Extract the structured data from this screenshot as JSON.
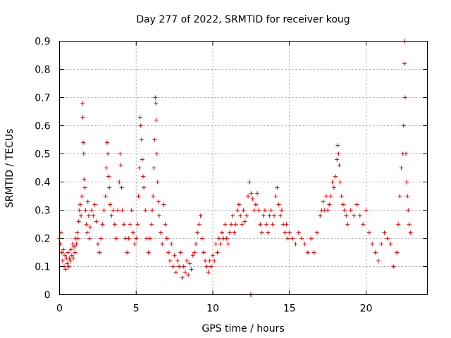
{
  "chart_data": {
    "type": "scatter",
    "title": "Day 277 of 2022, SRMTID for receiver koug",
    "xlabel": "GPS time / hours",
    "ylabel": "SRMTID / TECUs",
    "xlim": [
      0,
      24
    ],
    "ylim": [
      0,
      0.9
    ],
    "xticks": [
      0,
      5,
      10,
      15,
      20
    ],
    "xtick_labels": [
      "0",
      "5",
      "10",
      "15",
      "20"
    ],
    "yticks": [
      0,
      0.1,
      0.2,
      0.3,
      0.4,
      0.5,
      0.6,
      0.7,
      0.8,
      0.9
    ],
    "ytick_labels": [
      "0",
      "0.1",
      "0.2",
      "0.3",
      "0.4",
      "0.5",
      "0.6",
      "0.7",
      "0.8",
      "0.9"
    ],
    "grid": true,
    "marker": "+",
    "color": "#ff0000",
    "series": [
      {
        "name": "SRMTID",
        "points": [
          [
            0.0,
            0.2
          ],
          [
            0.05,
            0.18
          ],
          [
            0.1,
            0.22
          ],
          [
            0.15,
            0.15
          ],
          [
            0.2,
            0.12
          ],
          [
            0.25,
            0.16
          ],
          [
            0.3,
            0.1
          ],
          [
            0.35,
            0.14
          ],
          [
            0.4,
            0.09
          ],
          [
            0.45,
            0.13
          ],
          [
            0.5,
            0.11
          ],
          [
            0.55,
            0.15
          ],
          [
            0.6,
            0.1
          ],
          [
            0.65,
            0.13
          ],
          [
            0.7,
            0.12
          ],
          [
            0.75,
            0.16
          ],
          [
            0.8,
            0.14
          ],
          [
            0.85,
            0.18
          ],
          [
            0.9,
            0.13
          ],
          [
            0.95,
            0.17
          ],
          [
            1.0,
            0.15
          ],
          [
            1.05,
            0.2
          ],
          [
            1.1,
            0.18
          ],
          [
            1.15,
            0.22
          ],
          [
            1.2,
            0.2
          ],
          [
            1.25,
            0.26
          ],
          [
            1.3,
            0.3
          ],
          [
            1.35,
            0.32
          ],
          [
            1.4,
            0.28
          ],
          [
            1.45,
            0.35
          ],
          [
            1.5,
            0.68
          ],
          [
            1.52,
            0.63
          ],
          [
            1.55,
            0.54
          ],
          [
            1.58,
            0.5
          ],
          [
            1.6,
            0.41
          ],
          [
            1.65,
            0.38
          ],
          [
            1.7,
            0.3
          ],
          [
            1.75,
            0.25
          ],
          [
            1.8,
            0.22
          ],
          [
            1.85,
            0.33
          ],
          [
            1.9,
            0.28
          ],
          [
            1.95,
            0.2
          ],
          [
            2.0,
            0.24
          ],
          [
            2.1,
            0.3
          ],
          [
            2.2,
            0.28
          ],
          [
            2.3,
            0.32
          ],
          [
            2.4,
            0.26
          ],
          [
            2.5,
            0.18
          ],
          [
            2.6,
            0.15
          ],
          [
            2.7,
            0.2
          ],
          [
            2.8,
            0.25
          ],
          [
            2.9,
            0.3
          ],
          [
            3.0,
            0.35
          ],
          [
            3.05,
            0.45
          ],
          [
            3.1,
            0.54
          ],
          [
            3.15,
            0.5
          ],
          [
            3.2,
            0.42
          ],
          [
            3.25,
            0.38
          ],
          [
            3.3,
            0.32
          ],
          [
            3.4,
            0.28
          ],
          [
            3.5,
            0.3
          ],
          [
            3.6,
            0.25
          ],
          [
            3.7,
            0.2
          ],
          [
            3.8,
            0.3
          ],
          [
            3.9,
            0.4
          ],
          [
            3.95,
            0.5
          ],
          [
            4.0,
            0.46
          ],
          [
            4.05,
            0.38
          ],
          [
            4.1,
            0.3
          ],
          [
            4.2,
            0.25
          ],
          [
            4.3,
            0.2
          ],
          [
            4.4,
            0.15
          ],
          [
            4.5,
            0.2
          ],
          [
            4.6,
            0.25
          ],
          [
            4.7,
            0.3
          ],
          [
            4.8,
            0.22
          ],
          [
            4.9,
            0.18
          ],
          [
            5.0,
            0.2
          ],
          [
            5.1,
            0.25
          ],
          [
            5.15,
            0.35
          ],
          [
            5.2,
            0.45
          ],
          [
            5.25,
            0.63
          ],
          [
            5.3,
            0.6
          ],
          [
            5.35,
            0.55
          ],
          [
            5.4,
            0.48
          ],
          [
            5.45,
            0.42
          ],
          [
            5.5,
            0.38
          ],
          [
            5.6,
            0.3
          ],
          [
            5.7,
            0.2
          ],
          [
            5.8,
            0.15
          ],
          [
            5.9,
            0.2
          ],
          [
            6.0,
            0.25
          ],
          [
            6.05,
            0.3
          ],
          [
            6.1,
            0.35
          ],
          [
            6.15,
            0.45
          ],
          [
            6.2,
            0.55
          ],
          [
            6.25,
            0.7
          ],
          [
            6.28,
            0.68
          ],
          [
            6.3,
            0.62
          ],
          [
            6.35,
            0.5
          ],
          [
            6.4,
            0.4
          ],
          [
            6.45,
            0.33
          ],
          [
            6.5,
            0.28
          ],
          [
            6.6,
            0.22
          ],
          [
            6.7,
            0.18
          ],
          [
            6.8,
            0.32
          ],
          [
            6.9,
            0.25
          ],
          [
            7.0,
            0.2
          ],
          [
            7.1,
            0.15
          ],
          [
            7.2,
            0.12
          ],
          [
            7.3,
            0.18
          ],
          [
            7.4,
            0.1
          ],
          [
            7.5,
            0.14
          ],
          [
            7.6,
            0.08
          ],
          [
            7.7,
            0.12
          ],
          [
            7.8,
            0.1
          ],
          [
            7.9,
            0.15
          ],
          [
            8.0,
            0.06
          ],
          [
            8.1,
            0.1
          ],
          [
            8.2,
            0.08
          ],
          [
            8.3,
            0.12
          ],
          [
            8.4,
            0.07
          ],
          [
            8.5,
            0.11
          ],
          [
            8.6,
            0.09
          ],
          [
            8.7,
            0.14
          ],
          [
            8.8,
            0.15
          ],
          [
            8.9,
            0.18
          ],
          [
            9.0,
            0.22
          ],
          [
            9.1,
            0.25
          ],
          [
            9.2,
            0.28
          ],
          [
            9.3,
            0.2
          ],
          [
            9.4,
            0.15
          ],
          [
            9.5,
            0.12
          ],
          [
            9.6,
            0.1
          ],
          [
            9.7,
            0.08
          ],
          [
            9.8,
            0.12
          ],
          [
            9.9,
            0.1
          ],
          [
            10.0,
            0.14
          ],
          [
            10.1,
            0.12
          ],
          [
            10.2,
            0.18
          ],
          [
            10.3,
            0.15
          ],
          [
            10.4,
            0.2
          ],
          [
            10.5,
            0.18
          ],
          [
            10.6,
            0.22
          ],
          [
            10.7,
            0.2
          ],
          [
            10.8,
            0.25
          ],
          [
            10.9,
            0.2
          ],
          [
            11.0,
            0.18
          ],
          [
            11.1,
            0.22
          ],
          [
            11.2,
            0.25
          ],
          [
            11.3,
            0.28
          ],
          [
            11.4,
            0.22
          ],
          [
            11.5,
            0.25
          ],
          [
            11.6,
            0.3
          ],
          [
            11.7,
            0.32
          ],
          [
            11.8,
            0.28
          ],
          [
            11.9,
            0.25
          ],
          [
            12.0,
            0.3
          ],
          [
            12.1,
            0.26
          ],
          [
            12.2,
            0.28
          ],
          [
            12.3,
            0.35
          ],
          [
            12.4,
            0.4
          ],
          [
            12.45,
            0.0
          ],
          [
            12.5,
            0.36
          ],
          [
            12.55,
            0.0
          ],
          [
            12.6,
            0.34
          ],
          [
            12.7,
            0.3
          ],
          [
            12.8,
            0.32
          ],
          [
            12.9,
            0.36
          ],
          [
            13.0,
            0.3
          ],
          [
            13.1,
            0.25
          ],
          [
            13.2,
            0.22
          ],
          [
            13.3,
            0.28
          ],
          [
            13.4,
            0.3
          ],
          [
            13.5,
            0.25
          ],
          [
            13.6,
            0.22
          ],
          [
            13.7,
            0.28
          ],
          [
            13.8,
            0.3
          ],
          [
            13.9,
            0.25
          ],
          [
            14.0,
            0.28
          ],
          [
            14.1,
            0.35
          ],
          [
            14.2,
            0.38
          ],
          [
            14.3,
            0.32
          ],
          [
            14.4,
            0.28
          ],
          [
            14.5,
            0.3
          ],
          [
            14.6,
            0.25
          ],
          [
            14.7,
            0.22
          ],
          [
            14.8,
            0.25
          ],
          [
            14.9,
            0.2
          ],
          [
            15.0,
            0.22
          ],
          [
            15.2,
            0.2
          ],
          [
            15.4,
            0.18
          ],
          [
            15.6,
            0.22
          ],
          [
            15.8,
            0.2
          ],
          [
            16.0,
            0.18
          ],
          [
            16.2,
            0.15
          ],
          [
            16.4,
            0.2
          ],
          [
            16.6,
            0.15
          ],
          [
            16.8,
            0.22
          ],
          [
            17.0,
            0.28
          ],
          [
            17.1,
            0.3
          ],
          [
            17.2,
            0.33
          ],
          [
            17.3,
            0.3
          ],
          [
            17.4,
            0.35
          ],
          [
            17.5,
            0.3
          ],
          [
            17.6,
            0.32
          ],
          [
            17.7,
            0.35
          ],
          [
            17.8,
            0.4
          ],
          [
            17.9,
            0.38
          ],
          [
            18.0,
            0.42
          ],
          [
            18.1,
            0.48
          ],
          [
            18.15,
            0.53
          ],
          [
            18.2,
            0.5
          ],
          [
            18.25,
            0.46
          ],
          [
            18.3,
            0.4
          ],
          [
            18.4,
            0.35
          ],
          [
            18.5,
            0.32
          ],
          [
            18.6,
            0.3
          ],
          [
            18.7,
            0.28
          ],
          [
            18.8,
            0.25
          ],
          [
            19.0,
            0.3
          ],
          [
            19.2,
            0.28
          ],
          [
            19.4,
            0.32
          ],
          [
            19.6,
            0.28
          ],
          [
            19.8,
            0.25
          ],
          [
            20.0,
            0.3
          ],
          [
            20.2,
            0.22
          ],
          [
            20.4,
            0.18
          ],
          [
            20.6,
            0.15
          ],
          [
            20.8,
            0.12
          ],
          [
            21.0,
            0.18
          ],
          [
            21.2,
            0.22
          ],
          [
            21.4,
            0.2
          ],
          [
            21.6,
            0.18
          ],
          [
            21.8,
            0.1
          ],
          [
            22.0,
            0.15
          ],
          [
            22.1,
            0.25
          ],
          [
            22.2,
            0.35
          ],
          [
            22.3,
            0.45
          ],
          [
            22.4,
            0.5
          ],
          [
            22.45,
            0.6
          ],
          [
            22.5,
            0.82
          ],
          [
            22.52,
            0.9
          ],
          [
            22.55,
            0.7
          ],
          [
            22.6,
            0.5
          ],
          [
            22.65,
            0.4
          ],
          [
            22.7,
            0.35
          ],
          [
            22.75,
            0.3
          ],
          [
            22.8,
            0.25
          ],
          [
            22.9,
            0.22
          ]
        ]
      }
    ]
  }
}
